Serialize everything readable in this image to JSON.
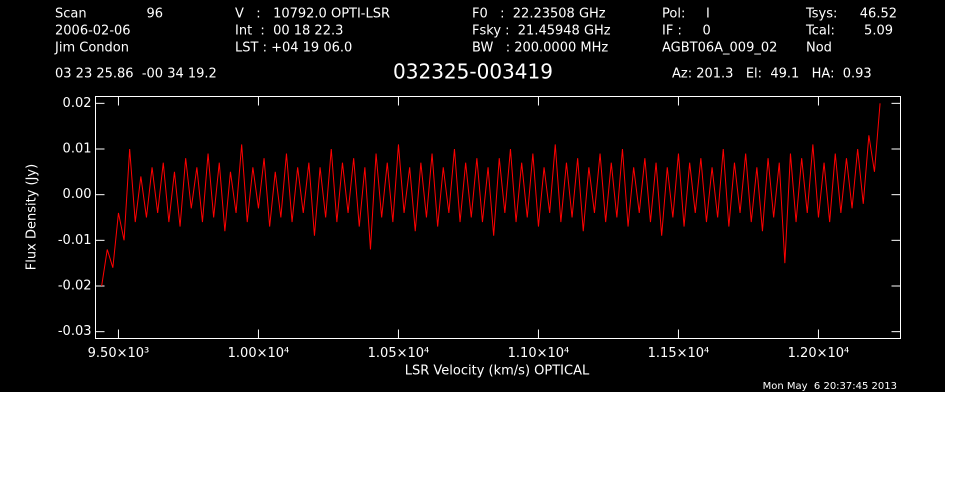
{
  "chart_data": {
    "type": "line",
    "title": "032325-003419",
    "annotations": [
      "Scan",
      "96",
      "2006-02-06",
      "Jim Condon",
      "V   :   10792.0 OPTI-LSR",
      "Int  :  00 18 22.3",
      "LST : +04 19 06.0",
      "F0   :  22.23508 GHz",
      "Fsky :  21.45948 GHz",
      "BW   : 200.0000 MHz",
      "Pol:     I",
      "IF :     0",
      "AGBT06A_009_02",
      "Tsys:",
      "46.52",
      "Tcal:",
      "5.09",
      "Nod",
      "03 23 25.86  -00 34 19.2",
      "Az: 201.3   El:  49.1   HA:  0.93",
      "Mon May  6 20:37:45 2013"
    ],
    "xlabel": "LSR Velocity (km/s) OPTICAL",
    "ylabel": "Flux Density (Jy)",
    "color": "#ff0000",
    "xlim": [
      9418,
      12293
    ],
    "ylim": [
      -0.0315,
      0.0215
    ],
    "xticks": [
      {
        "value": 9500,
        "label": "9.50×10³"
      },
      {
        "value": 10000,
        "label": "1.00×10⁴"
      },
      {
        "value": 10500,
        "label": "1.05×10⁴"
      },
      {
        "value": 11000,
        "label": "1.10×10⁴"
      },
      {
        "value": 11500,
        "label": "1.15×10⁴"
      },
      {
        "value": 12000,
        "label": "1.20×10⁴"
      }
    ],
    "yticks": [
      0.02,
      0.01,
      {
        "value": 0,
        "label": "0.00"
      },
      -0.01,
      -0.02,
      -0.03
    ],
    "x": [
      9440,
      9460,
      9480,
      9500,
      9520,
      9540,
      9560,
      9580,
      9600,
      9620,
      9640,
      9660,
      9680,
      9700,
      9720,
      9740,
      9760,
      9780,
      9800,
      9820,
      9840,
      9860,
      9880,
      9900,
      9920,
      9940,
      9960,
      9980,
      10000,
      10020,
      10040,
      10060,
      10080,
      10100,
      10120,
      10140,
      10160,
      10180,
      10200,
      10220,
      10240,
      10260,
      10280,
      10300,
      10320,
      10340,
      10360,
      10380,
      10400,
      10420,
      10440,
      10460,
      10480,
      10500,
      10520,
      10540,
      10560,
      10580,
      10600,
      10620,
      10640,
      10660,
      10680,
      10700,
      10720,
      10740,
      10760,
      10780,
      10800,
      10820,
      10840,
      10860,
      10880,
      10900,
      10920,
      10940,
      10960,
      10980,
      11000,
      11020,
      11040,
      11060,
      11080,
      11100,
      11120,
      11140,
      11160,
      11180,
      11200,
      11220,
      11240,
      11260,
      11280,
      11300,
      11320,
      11340,
      11360,
      11380,
      11400,
      11420,
      11440,
      11460,
      11480,
      11500,
      11520,
      11540,
      11560,
      11580,
      11600,
      11620,
      11640,
      11660,
      11680,
      11700,
      11720,
      11740,
      11760,
      11780,
      11800,
      11820,
      11840,
      11860,
      11880,
      11900,
      11920,
      11940,
      11960,
      11980,
      12000,
      12020,
      12040,
      12060,
      12080,
      12100,
      12120,
      12140,
      12160,
      12180,
      12200,
      12220
    ],
    "values": [
      -0.02,
      -0.012,
      -0.016,
      -0.004,
      -0.01,
      0.01,
      -0.006,
      0.004,
      -0.005,
      0.006,
      -0.004,
      0.007,
      -0.006,
      0.005,
      -0.007,
      0.008,
      -0.003,
      0.006,
      -0.006,
      0.009,
      -0.005,
      0.007,
      -0.008,
      0.005,
      -0.004,
      0.011,
      -0.006,
      0.006,
      -0.003,
      0.008,
      -0.007,
      0.005,
      -0.005,
      0.009,
      -0.006,
      0.006,
      -0.004,
      0.007,
      -0.009,
      0.006,
      -0.005,
      0.01,
      -0.006,
      0.007,
      -0.004,
      0.008,
      -0.007,
      0.006,
      -0.012,
      0.009,
      -0.005,
      0.007,
      -0.006,
      0.011,
      -0.004,
      0.006,
      -0.008,
      0.007,
      -0.005,
      0.009,
      -0.007,
      0.006,
      -0.004,
      0.01,
      -0.006,
      0.007,
      -0.005,
      0.008,
      -0.006,
      0.006,
      -0.009,
      0.008,
      -0.004,
      0.01,
      -0.006,
      0.007,
      -0.005,
      0.009,
      -0.007,
      0.006,
      -0.004,
      0.011,
      -0.006,
      0.007,
      -0.005,
      0.008,
      -0.008,
      0.006,
      -0.004,
      0.009,
      -0.006,
      0.007,
      -0.005,
      0.01,
      -0.007,
      0.006,
      -0.004,
      0.008,
      -0.006,
      0.007,
      -0.009,
      0.006,
      -0.005,
      0.009,
      -0.007,
      0.007,
      -0.004,
      0.008,
      -0.006,
      0.006,
      -0.005,
      0.01,
      -0.007,
      0.007,
      -0.004,
      0.009,
      -0.006,
      0.006,
      -0.008,
      0.008,
      -0.005,
      0.007,
      -0.015,
      0.009,
      -0.006,
      0.008,
      -0.004,
      0.011,
      -0.005,
      0.007,
      -0.006,
      0.009,
      -0.004,
      0.008,
      -0.003,
      0.01,
      -0.002,
      0.013,
      0.005,
      0.02
    ]
  }
}
